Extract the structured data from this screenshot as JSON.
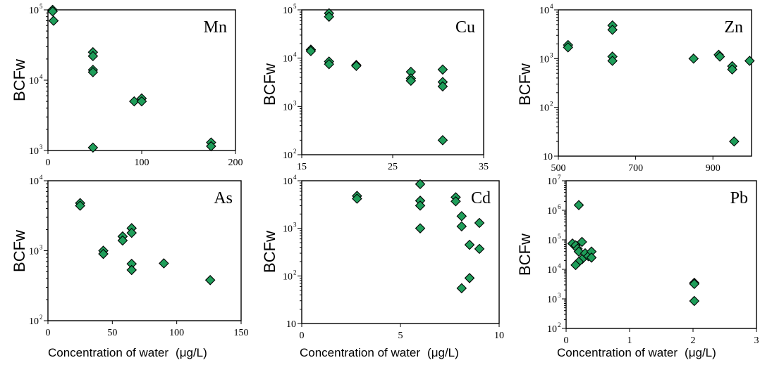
{
  "figure": {
    "marker_color": "#1f9e5a",
    "marker_stroke": "#000000",
    "x_axis_title": "Concentration of water",
    "x_axis_unit": "(μg/L)"
  },
  "chart_data": [
    {
      "type": "scatter",
      "title": "Mn",
      "ylabel": "BCFw",
      "xlabel": "",
      "xlim": [
        0,
        200
      ],
      "ylim": [
        1000,
        100000
      ],
      "yscale": "log",
      "xticks": [
        0,
        100,
        200
      ],
      "yticks": [
        1000,
        10000,
        100000
      ],
      "ytick_labels": [
        [
          "10",
          "3"
        ],
        [
          "10",
          "4"
        ],
        [
          "10",
          "5"
        ]
      ],
      "points": [
        [
          5,
          100000
        ],
        [
          5,
          95000
        ],
        [
          6,
          70000
        ],
        [
          48,
          25000
        ],
        [
          48,
          22000
        ],
        [
          48,
          14000
        ],
        [
          48,
          13000
        ],
        [
          48,
          1100
        ],
        [
          92,
          5000
        ],
        [
          100,
          5500
        ],
        [
          100,
          5000
        ],
        [
          174,
          1300
        ],
        [
          174,
          1150
        ]
      ]
    },
    {
      "type": "scatter",
      "title": "Cu",
      "ylabel": "BCFw",
      "xlabel": "",
      "xlim": [
        15,
        35
      ],
      "ylim": [
        100,
        100000
      ],
      "yscale": "log",
      "xticks": [
        15,
        25,
        35
      ],
      "yticks": [
        100,
        1000,
        10000,
        100000
      ],
      "ytick_labels": [
        [
          "10",
          "2"
        ],
        [
          "10",
          "3"
        ],
        [
          "10",
          "4"
        ],
        [
          "10",
          "5"
        ]
      ],
      "points": [
        [
          16,
          15000
        ],
        [
          16,
          14000
        ],
        [
          18,
          85000
        ],
        [
          18,
          72000
        ],
        [
          18,
          8500
        ],
        [
          18,
          7500
        ],
        [
          21,
          7200
        ],
        [
          21,
          6900
        ],
        [
          27,
          5200
        ],
        [
          27,
          3800
        ],
        [
          27,
          3400
        ],
        [
          30.5,
          5800
        ],
        [
          30.5,
          3200
        ],
        [
          30.5,
          2600
        ],
        [
          30.5,
          200
        ]
      ]
    },
    {
      "type": "scatter",
      "title": "Zn",
      "ylabel": "BCFw",
      "xlabel": "",
      "xlim": [
        500,
        1000
      ],
      "ylim": [
        10,
        10000
      ],
      "yscale": "log",
      "xticks": [
        500,
        700,
        900
      ],
      "yticks": [
        10,
        100,
        1000,
        10000
      ],
      "ytick_labels": [
        [
          "10",
          ""
        ],
        [
          "10",
          "2"
        ],
        [
          "10",
          "3"
        ],
        [
          "10",
          "4"
        ]
      ],
      "points": [
        [
          525,
          1900
        ],
        [
          525,
          1700
        ],
        [
          640,
          4800
        ],
        [
          640,
          3900
        ],
        [
          640,
          1100
        ],
        [
          640,
          900
        ],
        [
          850,
          1000
        ],
        [
          915,
          1200
        ],
        [
          918,
          1100
        ],
        [
          950,
          700
        ],
        [
          950,
          600
        ],
        [
          995,
          900
        ],
        [
          955,
          20
        ]
      ]
    },
    {
      "type": "scatter",
      "title": "As",
      "ylabel": "BCFw",
      "xlabel": "",
      "xlim": [
        0,
        150
      ],
      "ylim": [
        100,
        10000
      ],
      "yscale": "log",
      "xticks": [
        0,
        50,
        100,
        150
      ],
      "yticks": [
        100,
        1000,
        10000
      ],
      "ytick_labels": [
        [
          "10",
          "2"
        ],
        [
          "10",
          "3"
        ],
        [
          "10",
          "4"
        ]
      ],
      "points": [
        [
          25,
          4800
        ],
        [
          25,
          4400
        ],
        [
          43,
          1000
        ],
        [
          43,
          900
        ],
        [
          58,
          1600
        ],
        [
          58,
          1400
        ],
        [
          65,
          2100
        ],
        [
          65,
          1800
        ],
        [
          65,
          650
        ],
        [
          65,
          530
        ],
        [
          90,
          660
        ],
        [
          126,
          380
        ]
      ]
    },
    {
      "type": "scatter",
      "title": "Cd",
      "ylabel": "BCFw",
      "xlabel": "",
      "xlim": [
        0,
        10
      ],
      "ylim": [
        10,
        10000
      ],
      "yscale": "log",
      "xticks": [
        0,
        5,
        10
      ],
      "yticks": [
        10,
        100,
        1000,
        10000
      ],
      "ytick_labels": [
        [
          "10",
          ""
        ],
        [
          "10",
          "2"
        ],
        [
          "10",
          "3"
        ],
        [
          "10",
          "4"
        ]
      ],
      "points": [
        [
          2.8,
          4800
        ],
        [
          2.8,
          4200
        ],
        [
          6,
          8500
        ],
        [
          6,
          3800
        ],
        [
          6,
          3000
        ],
        [
          6,
          1000
        ],
        [
          7.8,
          4500
        ],
        [
          7.8,
          3700
        ],
        [
          8.1,
          1800
        ],
        [
          8.1,
          1100
        ],
        [
          8.5,
          450
        ],
        [
          8.5,
          90
        ],
        [
          8.1,
          55
        ],
        [
          9,
          1300
        ],
        [
          9,
          370
        ]
      ]
    },
    {
      "type": "scatter",
      "title": "Pb",
      "ylabel": "BCFw",
      "xlabel": "",
      "xlim": [
        0,
        3
      ],
      "ylim": [
        100,
        10000000
      ],
      "yscale": "log",
      "xticks": [
        0,
        1,
        2,
        3
      ],
      "yticks": [
        100,
        1000,
        10000,
        100000,
        1000000,
        10000000
      ],
      "ytick_labels": [
        [
          "10",
          "2"
        ],
        [
          "10",
          "3"
        ],
        [
          "10",
          "4"
        ],
        [
          "10",
          "5"
        ],
        [
          "10",
          "6"
        ],
        [
          "10",
          "7"
        ]
      ],
      "points": [
        [
          0.2,
          1500000
        ],
        [
          0.1,
          75000
        ],
        [
          0.15,
          65000
        ],
        [
          0.25,
          85000
        ],
        [
          0.18,
          50000
        ],
        [
          0.2,
          40000
        ],
        [
          0.3,
          35000
        ],
        [
          0.35,
          28000
        ],
        [
          0.25,
          22000
        ],
        [
          0.2,
          18000
        ],
        [
          0.15,
          14000
        ],
        [
          0.4,
          40000
        ],
        [
          0.4,
          25000
        ],
        [
          2.02,
          3500
        ],
        [
          2.02,
          3200
        ],
        [
          2.02,
          850
        ]
      ]
    }
  ]
}
